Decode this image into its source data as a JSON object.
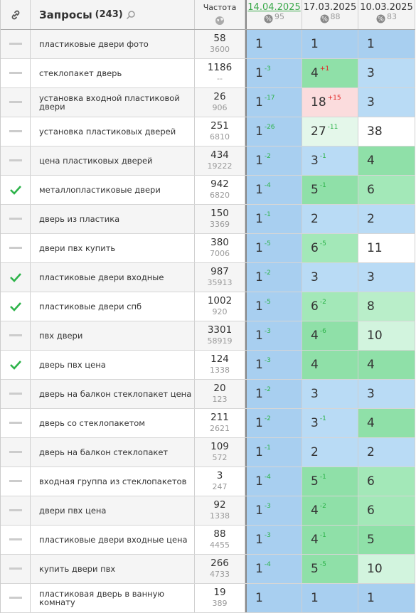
{
  "header": {
    "title": "Запросы",
    "count": "(243)",
    "frequency": "Частота",
    "dates": [
      {
        "label": "14.04.2025",
        "score": 95
      },
      {
        "label": "17.03.2025",
        "score": 88
      },
      {
        "label": "10.03.2025",
        "score": 83
      }
    ]
  },
  "rows": [
    {
      "status": "none",
      "query": "пластиковые двери фото",
      "freq": 58,
      "freq_sub": 3600,
      "positions": [
        {
          "value": 1
        },
        {
          "value": 1
        },
        {
          "value": 1
        }
      ]
    },
    {
      "status": "none",
      "query": "стеклопакет дверь",
      "freq": 1186,
      "freq_sub": "--",
      "positions": [
        {
          "value": 1,
          "change": "-3"
        },
        {
          "value": 4,
          "change": "+1"
        },
        {
          "value": 3
        }
      ]
    },
    {
      "status": "none",
      "query": "установка входной пластиковой двери",
      "freq": 26,
      "freq_sub": 906,
      "positions": [
        {
          "value": 1,
          "change": "-17"
        },
        {
          "value": 18,
          "change": "+15"
        },
        {
          "value": 3
        }
      ]
    },
    {
      "status": "none",
      "query": "установка пластиковых дверей",
      "freq": 251,
      "freq_sub": 6810,
      "positions": [
        {
          "value": 1,
          "change": "-26"
        },
        {
          "value": 27,
          "change": "-11"
        },
        {
          "value": 38
        }
      ]
    },
    {
      "status": "none",
      "query": "цена пластиковых дверей",
      "freq": 434,
      "freq_sub": 19222,
      "positions": [
        {
          "value": 1,
          "change": "-2"
        },
        {
          "value": 3,
          "change": "-1"
        },
        {
          "value": 4
        }
      ]
    },
    {
      "status": "check",
      "query": "металлопластиковые двери",
      "freq": 942,
      "freq_sub": 6820,
      "positions": [
        {
          "value": 1,
          "change": "-4"
        },
        {
          "value": 5,
          "change": "-1"
        },
        {
          "value": 6
        }
      ]
    },
    {
      "status": "none",
      "query": "дверь из пластика",
      "freq": 150,
      "freq_sub": 3369,
      "positions": [
        {
          "value": 1,
          "change": "-1"
        },
        {
          "value": 2
        },
        {
          "value": 2
        }
      ]
    },
    {
      "status": "none",
      "query": "двери пвх купить",
      "freq": 380,
      "freq_sub": 7006,
      "positions": [
        {
          "value": 1,
          "change": "-5"
        },
        {
          "value": 6,
          "change": "-5"
        },
        {
          "value": 11
        }
      ]
    },
    {
      "status": "check",
      "query": "пластиковые двери входные",
      "freq": 987,
      "freq_sub": 35913,
      "positions": [
        {
          "value": 1,
          "change": "-2"
        },
        {
          "value": 3
        },
        {
          "value": 3
        }
      ]
    },
    {
      "status": "check",
      "query": "пластиковые двери спб",
      "freq": 1002,
      "freq_sub": 920,
      "positions": [
        {
          "value": 1,
          "change": "-5"
        },
        {
          "value": 6,
          "change": "-2"
        },
        {
          "value": 8
        }
      ]
    },
    {
      "status": "none",
      "query": "пвх двери",
      "freq": 3301,
      "freq_sub": 58919,
      "positions": [
        {
          "value": 1,
          "change": "-3"
        },
        {
          "value": 4,
          "change": "-6"
        },
        {
          "value": 10
        }
      ]
    },
    {
      "status": "check",
      "query": "дверь пвх цена",
      "freq": 124,
      "freq_sub": 1338,
      "positions": [
        {
          "value": 1,
          "change": "-3"
        },
        {
          "value": 4
        },
        {
          "value": 4
        }
      ]
    },
    {
      "status": "none",
      "query": "дверь на балкон стеклопакет цена",
      "freq": 20,
      "freq_sub": 123,
      "positions": [
        {
          "value": 1,
          "change": "-2"
        },
        {
          "value": 3
        },
        {
          "value": 3
        }
      ]
    },
    {
      "status": "none",
      "query": "дверь со стеклопакетом",
      "freq": 211,
      "freq_sub": 2621,
      "positions": [
        {
          "value": 1,
          "change": "-2"
        },
        {
          "value": 3,
          "change": "-1"
        },
        {
          "value": 4
        }
      ]
    },
    {
      "status": "none",
      "query": "дверь на балкон стеклопакет",
      "freq": 109,
      "freq_sub": 572,
      "positions": [
        {
          "value": 1,
          "change": "-1"
        },
        {
          "value": 2
        },
        {
          "value": 2
        }
      ]
    },
    {
      "status": "none",
      "query": "входная группа из стеклопакетов",
      "freq": 3,
      "freq_sub": 247,
      "positions": [
        {
          "value": 1,
          "change": "-4"
        },
        {
          "value": 5,
          "change": "-1"
        },
        {
          "value": 6
        }
      ]
    },
    {
      "status": "none",
      "query": "двери пвх цена",
      "freq": 92,
      "freq_sub": 1338,
      "positions": [
        {
          "value": 1,
          "change": "-3"
        },
        {
          "value": 4,
          "change": "-2"
        },
        {
          "value": 6
        }
      ]
    },
    {
      "status": "none",
      "query": "пластиковые двери входные цена",
      "freq": 88,
      "freq_sub": 4455,
      "positions": [
        {
          "value": 1,
          "change": "-3"
        },
        {
          "value": 4,
          "change": "-1"
        },
        {
          "value": 5
        }
      ]
    },
    {
      "status": "none",
      "query": "купить двери пвх",
      "freq": 266,
      "freq_sub": 4733,
      "positions": [
        {
          "value": 1,
          "change": "-4"
        },
        {
          "value": 5,
          "change": "-5"
        },
        {
          "value": 10
        }
      ]
    },
    {
      "status": "none",
      "query": "пластиковая дверь в ванную комнату",
      "freq": 19,
      "freq_sub": 389,
      "positions": [
        {
          "value": 1
        },
        {
          "value": 1
        },
        {
          "value": 1
        }
      ]
    }
  ]
}
